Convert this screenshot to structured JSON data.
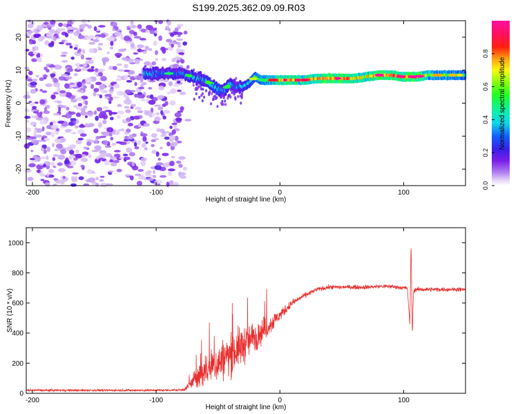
{
  "chart_data": [
    {
      "type": "heatmap",
      "title": "S199.2025.362.09.09.R03",
      "xlabel": "Height of straight line (km)",
      "ylabel": "Frequency (Hz)",
      "xlim": [
        -205,
        150
      ],
      "ylim": [
        -25,
        25
      ],
      "xticks": [
        -200,
        -100,
        0,
        100
      ],
      "yticks": [
        -20,
        -10,
        0,
        10,
        20
      ],
      "xtick_labels": [
        "-200",
        "-100",
        "0",
        "100"
      ],
      "ytick_labels": [
        "-20",
        "-10",
        "0",
        "10",
        "20"
      ],
      "colorbar": {
        "label": "Normalized spectral amplitude",
        "range": [
          0,
          1
        ],
        "ticks": [
          0.0,
          0.2,
          0.4,
          0.6,
          0.8
        ],
        "tick_labels": [
          "0.0",
          "0.2",
          "0.4",
          "0.6",
          "0.8"
        ],
        "colormap": "hsv-like (white → violet → blue → cyan → green → yellow → red → magenta)"
      },
      "features": {
        "noise_region_x": [
          -205,
          -78
        ],
        "noise_amplitude": 0.08,
        "signal_ridge": {
          "x": [
            -110,
            -100,
            -90,
            -80,
            -70,
            -60,
            -50,
            -45,
            -40,
            -35,
            -30,
            -25,
            -20,
            -15,
            -10,
            0,
            10,
            20,
            30,
            40,
            50,
            60,
            70,
            80,
            90,
            100,
            110,
            120,
            130,
            140,
            150
          ],
          "frequency": [
            9,
            9,
            9,
            9,
            8,
            7,
            4,
            4,
            6,
            5,
            5,
            6,
            8,
            7,
            7,
            7,
            7,
            7,
            7.5,
            7.5,
            7.5,
            7.5,
            8,
            8.5,
            8.5,
            8,
            8,
            8.5,
            8.5,
            8.5,
            8.5
          ],
          "amplitude": [
            0.4,
            0.3,
            0.3,
            0.3,
            0.35,
            0.35,
            0.4,
            0.3,
            0.35,
            0.3,
            0.35,
            0.4,
            0.5,
            0.55,
            0.6,
            0.75,
            0.8,
            0.7,
            0.75,
            0.85,
            0.8,
            0.75,
            0.7,
            0.85,
            0.8,
            0.75,
            0.9,
            0.6,
            0.55,
            0.55,
            0.5
          ]
        }
      }
    },
    {
      "type": "line",
      "xlabel": "Height of straight line (km)",
      "ylabel": "SNR (10 * v/v)",
      "xlim": [
        -205,
        150
      ],
      "ylim": [
        0,
        1100
      ],
      "xticks": [
        -200,
        -100,
        0,
        100
      ],
      "yticks": [
        0,
        200,
        400,
        600,
        800,
        1000
      ],
      "xtick_labels": [
        "-200",
        "-100",
        "0",
        "100"
      ],
      "ytick_labels": [
        "0",
        "200",
        "400",
        "600",
        "800",
        "1000"
      ],
      "series": [
        {
          "name": "SNR",
          "color": "#e83030",
          "x": [
            -205,
            -150,
            -100,
            -80,
            -76,
            -70,
            -60,
            -50,
            -40,
            -30,
            -20,
            -10,
            0,
            10,
            20,
            30,
            40,
            50,
            60,
            70,
            80,
            90,
            100,
            103,
            105,
            106,
            107,
            108,
            110,
            120,
            130,
            140,
            150
          ],
          "y": [
            20,
            20,
            20,
            22,
            30,
            80,
            150,
            200,
            260,
            320,
            380,
            440,
            520,
            600,
            650,
            690,
            705,
            705,
            705,
            705,
            710,
            710,
            700,
            700,
            450,
            1000,
            380,
            680,
            690,
            690,
            690,
            690,
            690
          ],
          "noise": [
            8,
            8,
            8,
            8,
            15,
            60,
            110,
            140,
            150,
            140,
            110,
            80,
            40,
            25,
            18,
            15,
            15,
            15,
            15,
            15,
            15,
            15,
            15,
            20,
            20,
            20,
            20,
            20,
            15,
            15,
            15,
            15,
            15
          ]
        }
      ]
    }
  ]
}
